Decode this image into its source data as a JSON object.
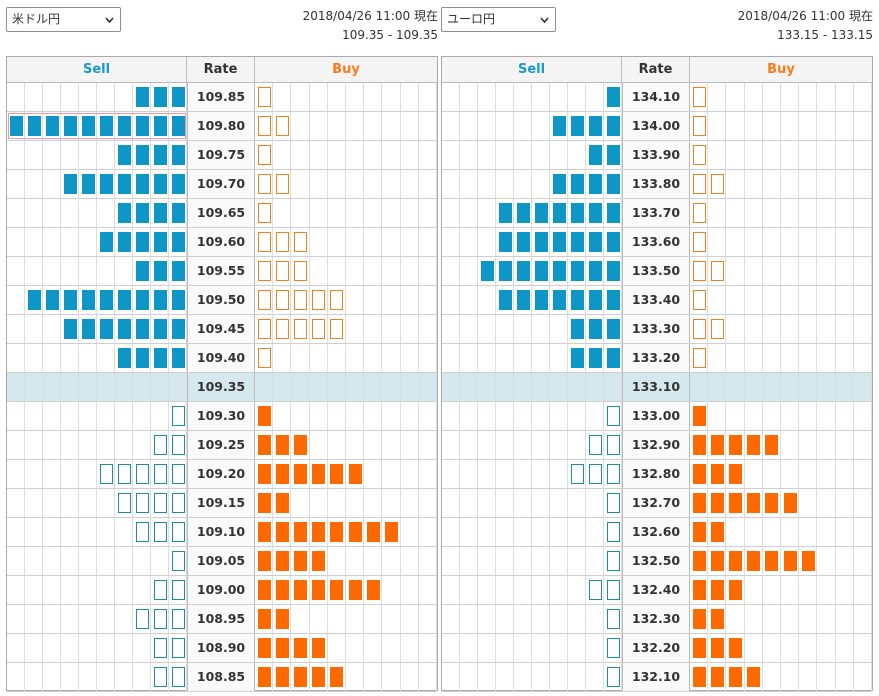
{
  "panels": [
    {
      "id": "left",
      "pair": "米ドル円",
      "timestamp": "2018/04/26 11:00 現在",
      "rate_range": "109.35 - 109.35",
      "headers": {
        "sell": "Sell",
        "rate": "Rate",
        "buy": "Buy"
      },
      "rows": [
        {
          "rate": "109.85",
          "sell": 3,
          "sell_type": "solid",
          "buy": 1,
          "buy_type": "outline"
        },
        {
          "rate": "109.80",
          "sell": 10,
          "sell_type": "solid",
          "buy": 2,
          "buy_type": "outline",
          "highlight": true
        },
        {
          "rate": "109.75",
          "sell": 4,
          "sell_type": "solid",
          "buy": 1,
          "buy_type": "outline"
        },
        {
          "rate": "109.70",
          "sell": 7,
          "sell_type": "solid",
          "buy": 2,
          "buy_type": "outline"
        },
        {
          "rate": "109.65",
          "sell": 4,
          "sell_type": "solid",
          "buy": 1,
          "buy_type": "outline"
        },
        {
          "rate": "109.60",
          "sell": 5,
          "sell_type": "solid",
          "buy": 3,
          "buy_type": "outline"
        },
        {
          "rate": "109.55",
          "sell": 3,
          "sell_type": "solid",
          "buy": 3,
          "buy_type": "outline"
        },
        {
          "rate": "109.50",
          "sell": 9,
          "sell_type": "solid",
          "buy": 5,
          "buy_type": "outline"
        },
        {
          "rate": "109.45",
          "sell": 7,
          "sell_type": "solid",
          "buy": 5,
          "buy_type": "outline"
        },
        {
          "rate": "109.40",
          "sell": 4,
          "sell_type": "solid",
          "buy": 1,
          "buy_type": "outline"
        },
        {
          "rate": "109.35",
          "sell": 0,
          "sell_type": "solid",
          "buy": 0,
          "buy_type": "solid",
          "current": true
        },
        {
          "rate": "109.30",
          "sell": 1,
          "sell_type": "outline",
          "buy": 1,
          "buy_type": "solid"
        },
        {
          "rate": "109.25",
          "sell": 2,
          "sell_type": "outline",
          "buy": 3,
          "buy_type": "solid"
        },
        {
          "rate": "109.20",
          "sell": 5,
          "sell_type": "outline",
          "buy": 6,
          "buy_type": "solid"
        },
        {
          "rate": "109.15",
          "sell": 4,
          "sell_type": "outline",
          "buy": 2,
          "buy_type": "solid"
        },
        {
          "rate": "109.10",
          "sell": 3,
          "sell_type": "outline",
          "buy": 8,
          "buy_type": "solid"
        },
        {
          "rate": "109.05",
          "sell": 1,
          "sell_type": "outline",
          "buy": 4,
          "buy_type": "solid"
        },
        {
          "rate": "109.00",
          "sell": 2,
          "sell_type": "outline",
          "buy": 7,
          "buy_type": "solid"
        },
        {
          "rate": "108.95",
          "sell": 3,
          "sell_type": "outline",
          "buy": 2,
          "buy_type": "solid"
        },
        {
          "rate": "108.90",
          "sell": 2,
          "sell_type": "outline",
          "buy": 4,
          "buy_type": "solid"
        },
        {
          "rate": "108.85",
          "sell": 2,
          "sell_type": "outline",
          "buy": 5,
          "buy_type": "solid"
        }
      ]
    },
    {
      "id": "right",
      "pair": "ユーロ円",
      "timestamp": "2018/04/26 11:00 現在",
      "rate_range": "133.15 - 133.15",
      "headers": {
        "sell": "Sell",
        "rate": "Rate",
        "buy": "Buy"
      },
      "rows": [
        {
          "rate": "134.10",
          "sell": 1,
          "sell_type": "solid",
          "buy": 1,
          "buy_type": "outline"
        },
        {
          "rate": "134.00",
          "sell": 4,
          "sell_type": "solid",
          "buy": 1,
          "buy_type": "outline"
        },
        {
          "rate": "133.90",
          "sell": 2,
          "sell_type": "solid",
          "buy": 1,
          "buy_type": "outline"
        },
        {
          "rate": "133.80",
          "sell": 4,
          "sell_type": "solid",
          "buy": 2,
          "buy_type": "outline"
        },
        {
          "rate": "133.70",
          "sell": 7,
          "sell_type": "solid",
          "buy": 1,
          "buy_type": "outline"
        },
        {
          "rate": "133.60",
          "sell": 7,
          "sell_type": "solid",
          "buy": 1,
          "buy_type": "outline"
        },
        {
          "rate": "133.50",
          "sell": 8,
          "sell_type": "solid",
          "buy": 2,
          "buy_type": "outline"
        },
        {
          "rate": "133.40",
          "sell": 7,
          "sell_type": "solid",
          "buy": 1,
          "buy_type": "outline"
        },
        {
          "rate": "133.30",
          "sell": 3,
          "sell_type": "solid",
          "buy": 2,
          "buy_type": "outline"
        },
        {
          "rate": "133.20",
          "sell": 3,
          "sell_type": "solid",
          "buy": 1,
          "buy_type": "outline"
        },
        {
          "rate": "133.10",
          "sell": 0,
          "sell_type": "solid",
          "buy": 0,
          "buy_type": "solid",
          "current": true
        },
        {
          "rate": "133.00",
          "sell": 1,
          "sell_type": "outline",
          "buy": 1,
          "buy_type": "solid"
        },
        {
          "rate": "132.90",
          "sell": 2,
          "sell_type": "outline",
          "buy": 5,
          "buy_type": "solid"
        },
        {
          "rate": "132.80",
          "sell": 3,
          "sell_type": "outline",
          "buy": 3,
          "buy_type": "solid"
        },
        {
          "rate": "132.70",
          "sell": 1,
          "sell_type": "outline",
          "buy": 6,
          "buy_type": "solid"
        },
        {
          "rate": "132.60",
          "sell": 1,
          "sell_type": "outline",
          "buy": 2,
          "buy_type": "solid"
        },
        {
          "rate": "132.50",
          "sell": 1,
          "sell_type": "outline",
          "buy": 7,
          "buy_type": "solid"
        },
        {
          "rate": "132.40",
          "sell": 2,
          "sell_type": "outline",
          "buy": 3,
          "buy_type": "solid"
        },
        {
          "rate": "132.30",
          "sell": 1,
          "sell_type": "outline",
          "buy": 2,
          "buy_type": "solid"
        },
        {
          "rate": "132.20",
          "sell": 1,
          "sell_type": "outline",
          "buy": 3,
          "buy_type": "solid"
        },
        {
          "rate": "132.10",
          "sell": 1,
          "sell_type": "outline",
          "buy": 4,
          "buy_type": "solid"
        }
      ]
    }
  ],
  "icons": {
    "dropdown": "chevron-down-icon"
  },
  "colors": {
    "sell_accent": "#1a9ac8",
    "buy_accent": "#ff7a1a",
    "sell_block": "#0e96c6",
    "buy_block": "#ff6a00",
    "current_row": "#d5e8ee"
  }
}
